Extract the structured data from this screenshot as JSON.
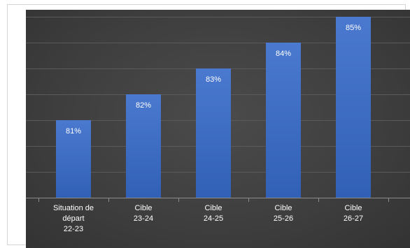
{
  "chart_data": {
    "type": "bar",
    "categories": [
      [
        "Situation de",
        "départ",
        "22-23"
      ],
      [
        "Cible",
        "23-24"
      ],
      [
        "Cible",
        "24-25"
      ],
      [
        "Cible",
        "25-26"
      ],
      [
        "Cible",
        "26-27"
      ]
    ],
    "values": [
      81,
      82,
      83,
      84,
      85
    ],
    "value_labels": [
      "81%",
      "82%",
      "83%",
      "84%",
      "85%"
    ],
    "ylim": [
      78,
      86
    ],
    "y_tick_labels_shown": false,
    "grid": true,
    "legend": "none",
    "colors": {
      "bar_top": "#4a79cf",
      "bar_bottom": "#3160b6",
      "background": "#3f3f3f",
      "grid": "#5a5a5a",
      "text": "#ffffff"
    }
  }
}
